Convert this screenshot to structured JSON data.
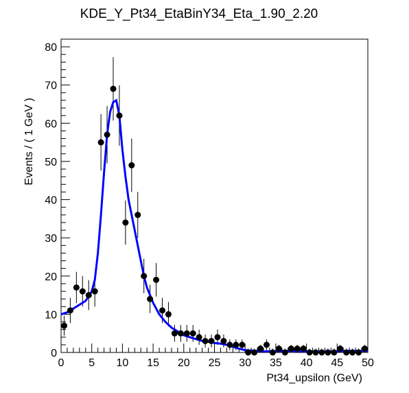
{
  "chart_data": {
    "type": "scatter",
    "title": "KDE_Y_Pt34_EtaBinY34_Eta_1.90_2.20",
    "xlabel": "Pt34_upsilon (GeV)",
    "ylabel": "Events / ( 1 GeV )",
    "xlim": [
      0,
      50
    ],
    "ylim": [
      0,
      82
    ],
    "x_ticks": [
      0,
      5,
      10,
      15,
      20,
      25,
      30,
      35,
      40,
      45,
      50
    ],
    "y_ticks": [
      0,
      10,
      20,
      30,
      40,
      50,
      60,
      70,
      80
    ],
    "grid": false,
    "legend": "none",
    "colors": {
      "points": "#000000",
      "curve": "#0000ff"
    },
    "series": [
      {
        "type": "points-with-errors",
        "x": [
          0.5,
          1.5,
          2.5,
          3.5,
          4.5,
          5.5,
          6.5,
          7.5,
          8.5,
          9.5,
          10.5,
          11.5,
          12.5,
          13.5,
          14.5,
          15.5,
          16.5,
          17.5,
          18.5,
          19.5,
          20.5,
          21.5,
          22.5,
          23.5,
          24.5,
          25.5,
          26.5,
          27.5,
          28.5,
          29.5,
          30.5,
          31.5,
          32.5,
          33.5,
          34.5,
          35.5,
          36.5,
          37.5,
          38.5,
          39.5,
          40.5,
          41.5,
          42.5,
          43.5,
          44.5,
          45.5,
          46.5,
          47.5,
          48.5,
          49.5
        ],
        "y": [
          7,
          11,
          17,
          16,
          15,
          16,
          55,
          57,
          69,
          62,
          34,
          49,
          36,
          20,
          14,
          19,
          11,
          10,
          5,
          5,
          5,
          5,
          4,
          3,
          3,
          4,
          3,
          2,
          2,
          2,
          0,
          0,
          1,
          2,
          0,
          1,
          0,
          1,
          1,
          1,
          0,
          0,
          0,
          0,
          0,
          1,
          0,
          0,
          0,
          1
        ],
        "yerr": [
          2.6,
          3.3,
          4.1,
          4.0,
          3.9,
          4.0,
          7.4,
          7.5,
          8.3,
          7.9,
          5.8,
          7.0,
          6.0,
          4.5,
          3.7,
          4.4,
          3.3,
          3.2,
          2.2,
          2.2,
          2.2,
          2.2,
          2.0,
          1.7,
          1.7,
          2.0,
          1.7,
          1.4,
          1.4,
          1.4,
          1.0,
          1.0,
          1.0,
          1.4,
          1.0,
          1.0,
          1.0,
          1.0,
          1.0,
          1.0,
          1.0,
          1.0,
          1.0,
          1.0,
          1.0,
          1.0,
          1.0,
          1.0,
          1.0,
          1.0
        ]
      },
      {
        "type": "curve",
        "x": [
          0,
          1,
          2,
          3,
          4,
          5,
          5.5,
          6,
          6.5,
          7,
          7.5,
          8,
          8.5,
          9,
          9.5,
          10,
          10.5,
          11,
          11.5,
          12,
          12.5,
          13,
          13.5,
          14,
          14.5,
          15,
          16,
          17,
          18,
          19,
          20,
          21,
          22,
          23,
          24,
          25,
          26,
          27,
          28,
          29,
          30,
          31,
          32,
          33,
          34,
          35,
          36,
          37,
          38,
          39,
          40,
          42,
          44,
          46,
          48,
          50
        ],
        "y": [
          10,
          10.5,
          11.5,
          12.5,
          13.5,
          16,
          19,
          26,
          36,
          47,
          57,
          63,
          65.5,
          66,
          62,
          53,
          46,
          40,
          36,
          32,
          28,
          24,
          20,
          17,
          15,
          13,
          10,
          8,
          6.5,
          5.5,
          4.5,
          4,
          3.5,
          3,
          2.8,
          2.5,
          2.3,
          2,
          1.5,
          1,
          0.6,
          0.5,
          0.4,
          0.3,
          0.3,
          0.3,
          0.4,
          0.4,
          0.4,
          0.3,
          0.3,
          0.3,
          0.3,
          0.4,
          0.4,
          0.4
        ]
      }
    ]
  }
}
